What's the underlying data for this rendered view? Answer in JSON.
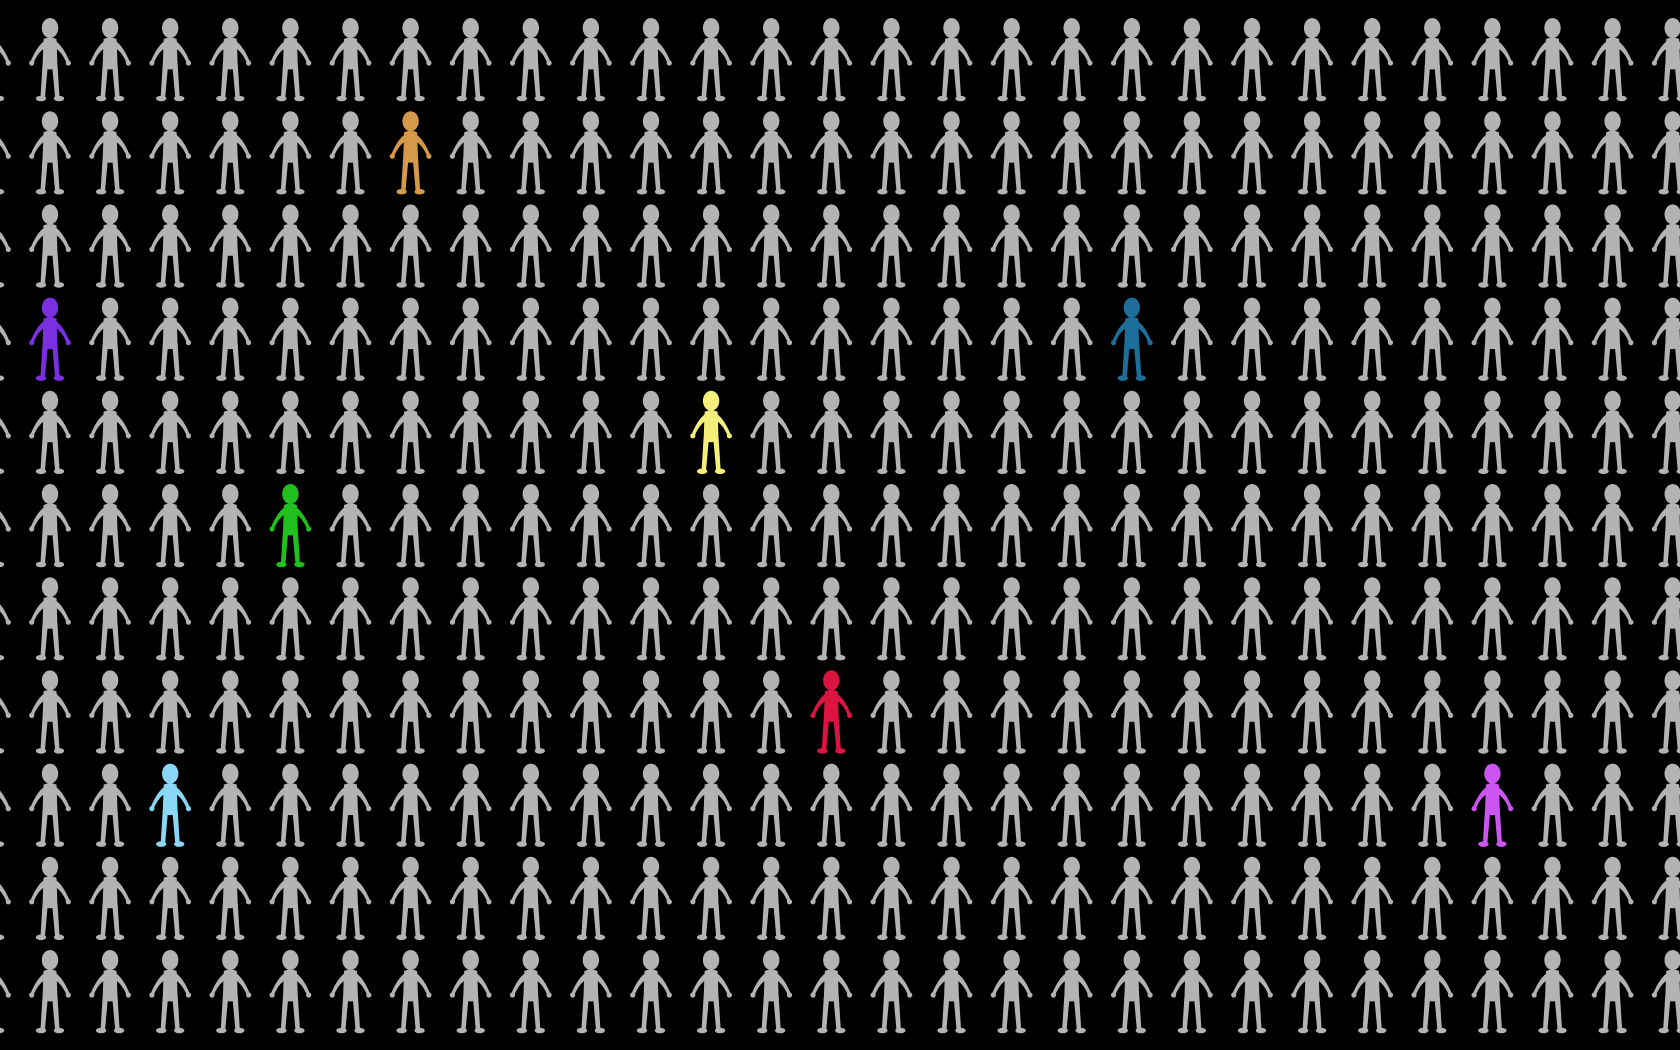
{
  "scene": {
    "background_color": "#000000",
    "figure_icon": "stick-figure-person-icon",
    "default_figure_color": "#b3b3b3",
    "grid": {
      "columns": 28,
      "rows": 11
    },
    "highlighted_figures": [
      {
        "row": 1,
        "col": 6,
        "color": "#d49a4a",
        "name": "orange-figure"
      },
      {
        "row": 3,
        "col": 0,
        "color": "#7a2fe0",
        "name": "purple-figure"
      },
      {
        "row": 3,
        "col": 18,
        "color": "#1e6e9a",
        "name": "teal-figure"
      },
      {
        "row": 4,
        "col": 11,
        "color": "#f5f07a",
        "name": "yellow-figure"
      },
      {
        "row": 5,
        "col": 4,
        "color": "#22c01e",
        "name": "green-figure"
      },
      {
        "row": 7,
        "col": 13,
        "color": "#dc1440",
        "name": "red-figure"
      },
      {
        "row": 8,
        "col": 2,
        "color": "#8ad6f5",
        "name": "light-blue-figure"
      },
      {
        "row": 8,
        "col": 24,
        "color": "#cc55f2",
        "name": "magenta-figure"
      }
    ]
  }
}
